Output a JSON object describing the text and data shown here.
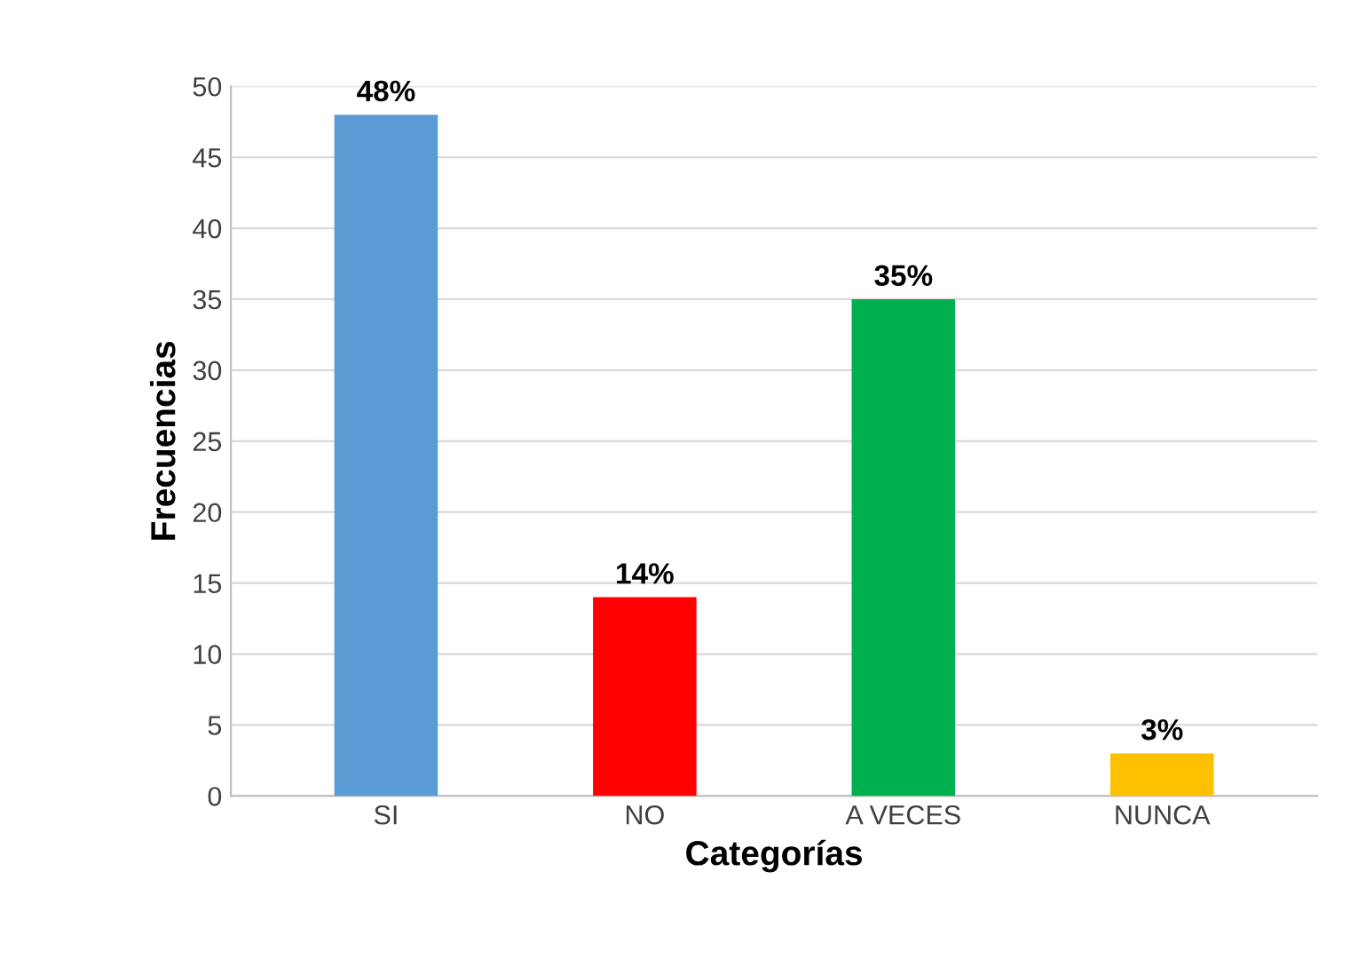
{
  "chart_data": {
    "type": "bar",
    "xlabel": "Categorías",
    "ylabel": "Frecuencias",
    "categories": [
      "SI",
      "NO",
      "A VECES",
      "NUNCA"
    ],
    "values": [
      48,
      14,
      35,
      3
    ],
    "colors": [
      "#5b9bd5",
      "#ff0000",
      "#00b050",
      "#ffc000"
    ],
    "value_labels": [
      "48%",
      "14%",
      "35%",
      "3%"
    ],
    "ylim": [
      0,
      50
    ],
    "yticks": [
      0,
      5,
      10,
      15,
      20,
      25,
      30,
      35,
      40,
      45,
      50
    ],
    "grid": "y"
  }
}
